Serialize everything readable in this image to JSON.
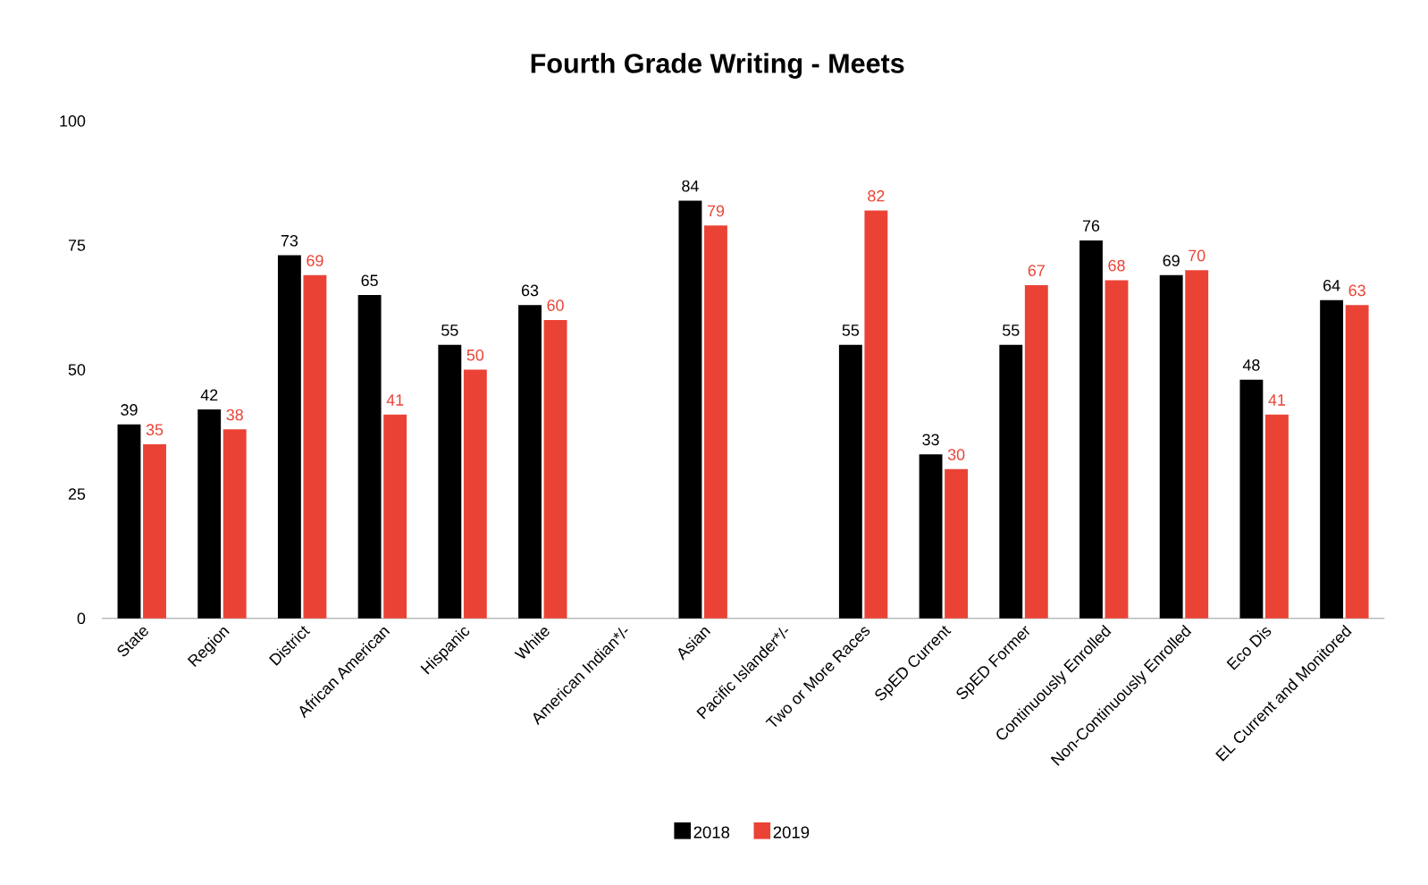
{
  "chart_data": {
    "type": "bar",
    "title": "Fourth Grade Writing - Meets",
    "categories": [
      "State",
      "Region",
      "District",
      "African American",
      "Hispanic",
      "White",
      "American Indian*/-",
      "Asian",
      "Pacific Islander*/-",
      "Two or More Races",
      "SpED Current",
      "SpED Former",
      "Continuously Enrolled",
      "Non-Continuously Enrolled",
      "Eco Dis",
      "EL Current and Monitored"
    ],
    "series": [
      {
        "name": "2018",
        "color": "#000000",
        "values": [
          39,
          42,
          73,
          65,
          55,
          63,
          null,
          84,
          null,
          55,
          33,
          55,
          76,
          69,
          48,
          64
        ]
      },
      {
        "name": "2019",
        "color": "#ea4335",
        "values": [
          35,
          38,
          69,
          41,
          50,
          60,
          null,
          79,
          null,
          82,
          30,
          67,
          68,
          70,
          41,
          63
        ]
      }
    ],
    "ylim": [
      0,
      100
    ],
    "yticks": [
      0,
      25,
      50,
      75,
      100
    ],
    "data_labels": true,
    "legend": "bottom"
  }
}
